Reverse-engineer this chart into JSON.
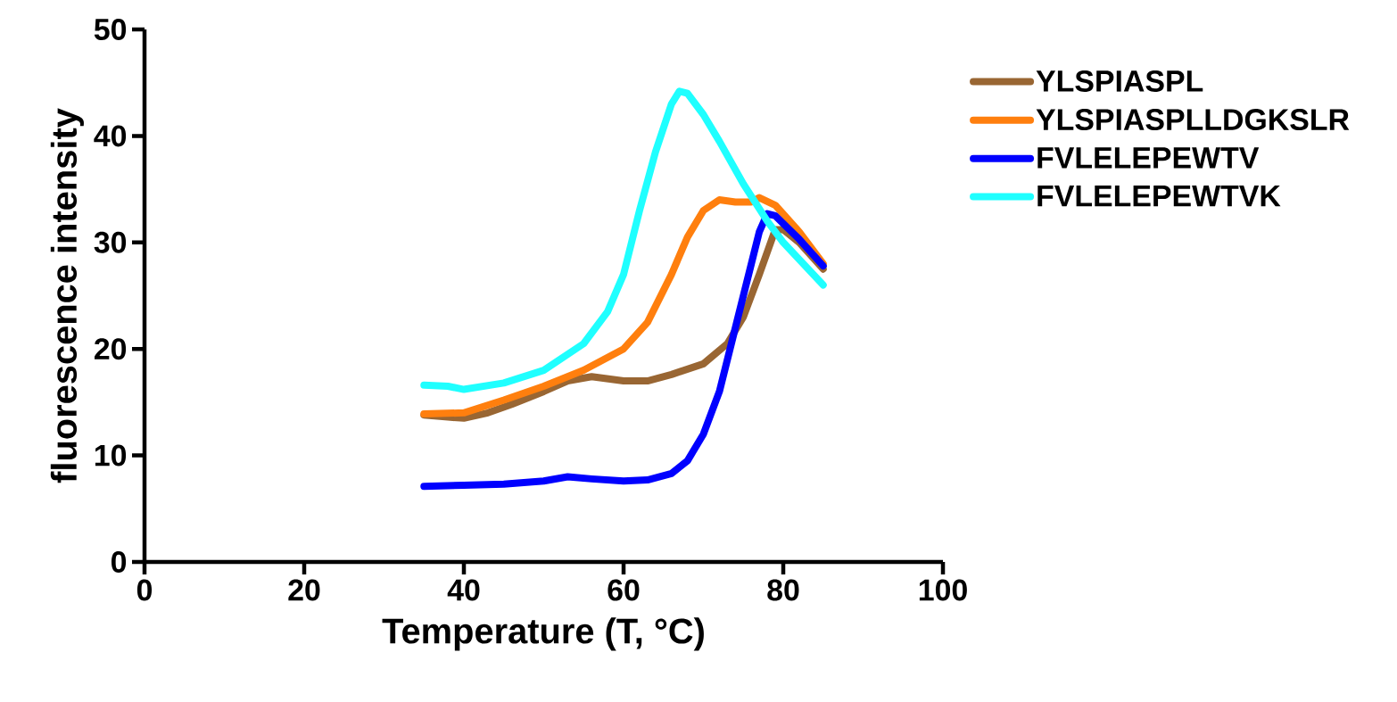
{
  "chart_data": {
    "type": "line",
    "xlabel": "Temperature (T, °C)",
    "ylabel": "fluorescence intensity",
    "xlim": [
      0,
      100
    ],
    "xticks": [
      0,
      20,
      40,
      60,
      80,
      100
    ],
    "ylim": [
      0,
      50
    ],
    "yticks": [
      0,
      10,
      20,
      30,
      40,
      50
    ],
    "grid": false,
    "legend": "right",
    "marker": "none",
    "line_style": "solid",
    "series": [
      {
        "name": "YLSPIASPL",
        "color": "#996633",
        "x": [
          35,
          38,
          40,
          43,
          46,
          50,
          53,
          56,
          60,
          63,
          66,
          70,
          73,
          75,
          77,
          79,
          80,
          82,
          85
        ],
        "values": [
          13.8,
          13.6,
          13.5,
          14,
          14.8,
          16,
          17,
          17.4,
          17,
          17,
          17.6,
          18.6,
          20.5,
          23,
          27,
          31.2,
          31.2,
          30,
          27.5
        ]
      },
      {
        "name": "YLSPIASPLLDGKSLR",
        "color": "#ff7f0e",
        "x": [
          35,
          40,
          45,
          50,
          55,
          60,
          63,
          66,
          68,
          70,
          72,
          74,
          76,
          77,
          79,
          82,
          85
        ],
        "values": [
          13.9,
          14,
          15.2,
          16.5,
          18,
          20,
          22.5,
          27,
          30.5,
          33,
          34,
          33.8,
          33.8,
          34.2,
          33.5,
          31,
          28
        ]
      },
      {
        "name": "FVLELEPEWTV",
        "color": "#0000ff",
        "x": [
          35,
          40,
          45,
          50,
          53,
          56,
          60,
          63,
          66,
          68,
          70,
          72,
          74,
          76,
          77,
          78,
          79,
          82,
          85
        ],
        "values": [
          7.1,
          7.2,
          7.3,
          7.6,
          8,
          7.8,
          7.6,
          7.7,
          8.3,
          9.5,
          12,
          16,
          22,
          28,
          31,
          32.7,
          32.5,
          30.3,
          27.8
        ]
      },
      {
        "name": "FVLELEPEWTVK",
        "color": "#1fffff",
        "x": [
          35,
          38,
          40,
          45,
          50,
          55,
          58,
          60,
          62,
          64,
          66,
          67,
          68,
          70,
          72,
          75,
          78,
          80,
          85
        ],
        "values": [
          16.6,
          16.5,
          16.2,
          16.8,
          18,
          20.5,
          23.5,
          27,
          33,
          38.5,
          43,
          44.2,
          44,
          42,
          39.5,
          35.5,
          32,
          30,
          26
        ]
      }
    ]
  }
}
